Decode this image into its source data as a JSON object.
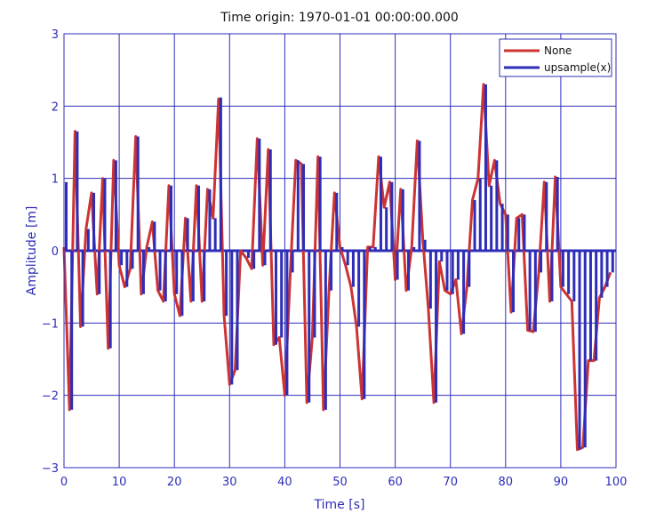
{
  "chart_data": {
    "type": "line",
    "title": "Time origin: 1970-01-01 00:00:00.000",
    "xlabel": "Time  [s]",
    "ylabel": "Amplitude  [m]",
    "xlim": [
      0,
      100
    ],
    "ylim": [
      -3,
      3
    ],
    "xticks": [
      0,
      10,
      20,
      30,
      40,
      50,
      60,
      70,
      80,
      90,
      100
    ],
    "yticks": [
      -3,
      -2,
      -1,
      0,
      1,
      2,
      3
    ],
    "xtick_labels": [
      "0",
      "10",
      "20",
      "30",
      "40",
      "50",
      "60",
      "70",
      "80",
      "90",
      "100"
    ],
    "ytick_labels": [
      "−3",
      "−2",
      "−1",
      "0",
      "1",
      "2",
      "3"
    ],
    "grid": true,
    "legend_position": "top-right",
    "series": [
      {
        "name": "None",
        "style": "line",
        "color": "#cc3333",
        "x": [
          0,
          1,
          2,
          3,
          4,
          5,
          6,
          7,
          8,
          9,
          10,
          11,
          12,
          13,
          14,
          15,
          16,
          17,
          18,
          19,
          20,
          21,
          22,
          23,
          24,
          25,
          26,
          27,
          28,
          29,
          30,
          31,
          32,
          33,
          34,
          35,
          36,
          37,
          38,
          39,
          40,
          41,
          42,
          43,
          44,
          45,
          46,
          47,
          48,
          49,
          50,
          51,
          52,
          53,
          54,
          55,
          56,
          57,
          58,
          59,
          60,
          61,
          62,
          63,
          64,
          65,
          66,
          67,
          68,
          69,
          70,
          71,
          72,
          73,
          74,
          75,
          76,
          77,
          78,
          79,
          80,
          81,
          82,
          83,
          84,
          85,
          86,
          87,
          88,
          89,
          90,
          91,
          92,
          93,
          94,
          95,
          96,
          97,
          98,
          99
        ],
        "y": [
          0.05,
          -2.2,
          1.65,
          -1.05,
          0.3,
          0.8,
          -0.6,
          1.0,
          -1.35,
          1.25,
          -0.2,
          -0.5,
          -0.25,
          1.58,
          -0.6,
          0.05,
          0.4,
          -0.55,
          -0.7,
          0.9,
          -0.6,
          -0.9,
          0.45,
          -0.7,
          0.9,
          -0.7,
          0.85,
          0.45,
          2.1,
          -0.9,
          -1.85,
          -1.65,
          0.0,
          -0.1,
          -0.25,
          1.55,
          -0.2,
          1.4,
          -1.3,
          -1.2,
          -2.0,
          -0.3,
          1.25,
          1.2,
          -2.1,
          -1.2,
          1.3,
          -2.2,
          -0.55,
          0.8,
          0.05,
          -0.2,
          -0.5,
          -1.05,
          -2.05,
          0.05,
          0.05,
          1.3,
          0.6,
          0.95,
          -0.4,
          0.85,
          -0.55,
          0.05,
          1.52,
          0.15,
          -0.8,
          -2.1,
          -0.15,
          -0.55,
          -0.6,
          -0.4,
          -1.15,
          -0.5,
          0.7,
          1.0,
          2.3,
          0.9,
          1.25,
          0.65,
          0.5,
          -0.85,
          0.45,
          0.5,
          -1.1,
          -1.12,
          -0.3,
          0.95,
          -0.7,
          1.02,
          -0.5,
          -0.6,
          -0.7,
          -2.75,
          -2.72,
          -1.52,
          -1.52,
          -0.65,
          -0.5,
          -0.3
        ]
      },
      {
        "name": "upsample(x)",
        "style": "stem",
        "color": "#2d2db8",
        "x": [
          0,
          1,
          2,
          3,
          4,
          5,
          6,
          7,
          8,
          9,
          10,
          11,
          12,
          13,
          14,
          15,
          16,
          17,
          18,
          19,
          20,
          21,
          22,
          23,
          24,
          25,
          26,
          27,
          28,
          29,
          30,
          31,
          32,
          33,
          34,
          35,
          36,
          37,
          38,
          39,
          40,
          41,
          42,
          43,
          44,
          45,
          46,
          47,
          48,
          49,
          50,
          51,
          52,
          53,
          54,
          55,
          56,
          57,
          58,
          59,
          60,
          61,
          62,
          63,
          64,
          65,
          66,
          67,
          68,
          69,
          70,
          71,
          72,
          73,
          74,
          75,
          76,
          77,
          78,
          79,
          80,
          81,
          82,
          83,
          84,
          85,
          86,
          87,
          88,
          89,
          90,
          91,
          92,
          93,
          94,
          95,
          96,
          97,
          98,
          99
        ],
        "y": [
          0.95,
          -2.2,
          1.65,
          -1.05,
          0.3,
          0.8,
          -0.6,
          1.0,
          -1.35,
          1.25,
          -0.2,
          -0.5,
          -0.25,
          1.58,
          -0.6,
          0.05,
          0.4,
          -0.55,
          -0.7,
          0.9,
          -0.6,
          -0.9,
          0.45,
          -0.7,
          0.9,
          -0.7,
          0.85,
          0.45,
          2.12,
          -0.9,
          -1.85,
          -1.65,
          0.0,
          -0.1,
          -0.25,
          1.55,
          -0.2,
          1.4,
          -1.3,
          -1.2,
          -2.0,
          -0.3,
          1.25,
          1.2,
          -2.1,
          -1.2,
          1.3,
          -2.2,
          -0.55,
          0.8,
          0.05,
          -0.2,
          -0.5,
          -1.05,
          -2.05,
          0.05,
          0.05,
          1.3,
          0.6,
          0.95,
          -0.4,
          0.85,
          -0.55,
          0.05,
          1.52,
          0.15,
          -0.8,
          -2.1,
          -0.15,
          -0.55,
          -0.6,
          -0.4,
          -1.15,
          -0.5,
          0.7,
          1.0,
          2.3,
          0.9,
          1.25,
          0.65,
          0.5,
          -0.85,
          0.45,
          0.5,
          -1.1,
          -1.12,
          -0.3,
          0.95,
          -0.7,
          1.02,
          -0.5,
          -0.6,
          -0.7,
          -2.75,
          -2.72,
          -1.52,
          -1.52,
          -0.65,
          -0.5,
          -0.3
        ]
      }
    ]
  }
}
